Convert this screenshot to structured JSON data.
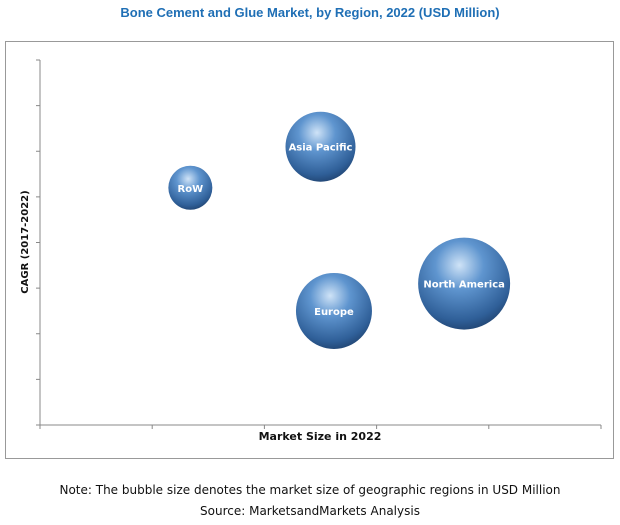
{
  "chart_data": {
    "type": "bubble",
    "title": "Bone Cement and Glue Market, by Region, 2022 (USD Million)",
    "xlabel": "Market Size in 2022",
    "ylabel": "CAGR (2017-2022)",
    "xlim": [
      0,
      5
    ],
    "ylim": [
      0,
      8
    ],
    "grid": false,
    "bubble_color": "#3a6ea8",
    "points": [
      {
        "label": "RoW",
        "x": 1.34,
        "y": 5.2,
        "size": 22
      },
      {
        "label": "Asia Pacific",
        "x": 2.5,
        "y": 6.1,
        "size": 35
      },
      {
        "label": "Europe",
        "x": 2.62,
        "y": 2.5,
        "size": 38
      },
      {
        "label": "North America",
        "x": 3.78,
        "y": 3.1,
        "size": 46
      }
    ]
  },
  "footer": {
    "note": "Note: The bubble size denotes the market size of geographic regions in USD Million",
    "source": "Source: MarketsandMarkets Analysis"
  }
}
